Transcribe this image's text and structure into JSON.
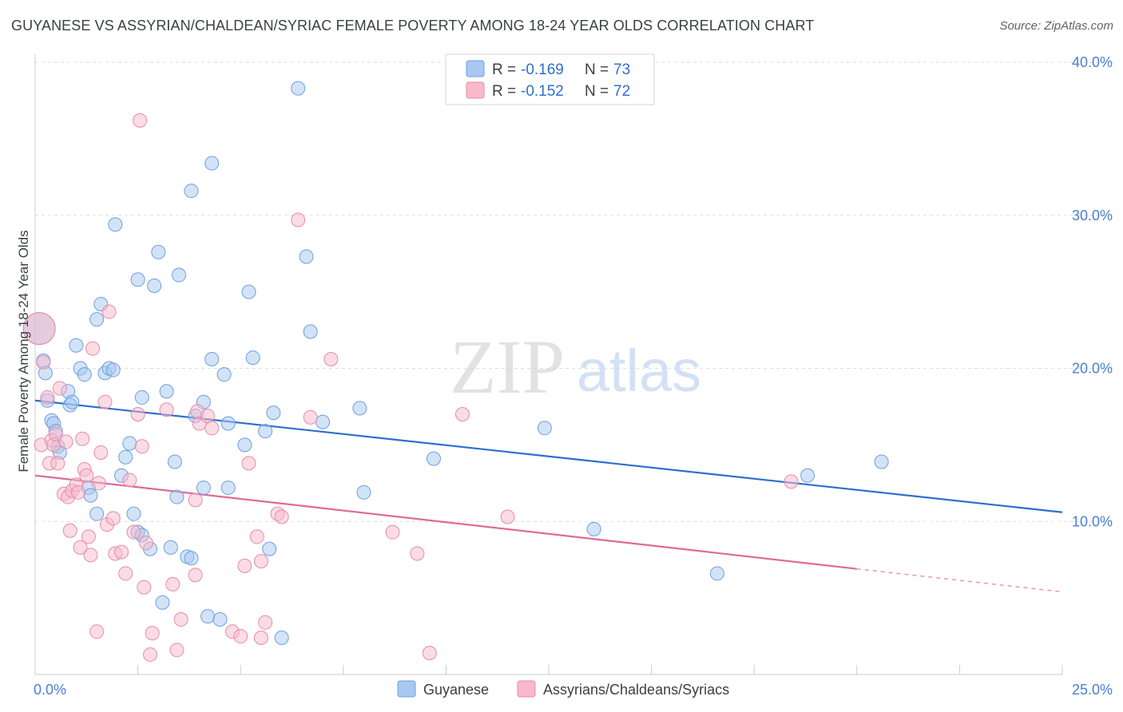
{
  "title": "GUYANESE VS ASSYRIAN/CHALDEAN/SYRIAC FEMALE POVERTY AMONG 18-24 YEAR OLDS CORRELATION CHART",
  "source": "Source: ZipAtlas.com",
  "watermark": {
    "zip": "ZIP",
    "atlas": "atlas"
  },
  "colors": {
    "blue_fill": "#a8c8f0",
    "blue_stroke": "#6c9fe0",
    "blue_line": "#2f6fce",
    "pink_fill": "#f8b9cc",
    "pink_stroke": "#e98aa8",
    "pink_line": "#e06a96",
    "axis_text": "#4a7fd4",
    "grid": "#dddddd"
  },
  "legend_top": {
    "rows": [
      {
        "r_label": "R =",
        "r_value": "-0.169",
        "n_label": "N =",
        "n_value": "73"
      },
      {
        "r_label": "R =",
        "r_value": "-0.152",
        "n_label": "N =",
        "n_value": "72"
      }
    ]
  },
  "chart_data": {
    "type": "scatter",
    "title": "GUYANESE VS ASSYRIAN/CHALDEAN/SYRIAC FEMALE POVERTY AMONG 18-24 YEAR OLDS CORRELATION CHART",
    "xlabel": "",
    "ylabel": "Female Poverty Among 18-24 Year Olds",
    "xlim": [
      0,
      25
    ],
    "ylim": [
      0,
      40
    ],
    "x_tick_labels": [
      "0.0%",
      "25.0%"
    ],
    "y_ticks": [
      10,
      20,
      30,
      40
    ],
    "y_tick_labels": [
      "10.0%",
      "20.0%",
      "30.0%",
      "40.0%"
    ],
    "grid": true,
    "legend_position": "bottom",
    "series": [
      {
        "name": "Guyanese",
        "color": "#a8c8f0",
        "r": -0.169,
        "n": 73,
        "trend": {
          "x": [
            0,
            25
          ],
          "y": [
            17.9,
            10.6
          ]
        },
        "points": [
          [
            0.1,
            22.6
          ],
          [
            0.2,
            20.5
          ],
          [
            0.25,
            19.7
          ],
          [
            0.3,
            17.9
          ],
          [
            0.4,
            16.6
          ],
          [
            0.45,
            16.4
          ],
          [
            0.5,
            15.9
          ],
          [
            0.55,
            14.9
          ],
          [
            0.6,
            14.5
          ],
          [
            0.8,
            18.5
          ],
          [
            0.85,
            17.6
          ],
          [
            0.9,
            17.8
          ],
          [
            1.0,
            21.5
          ],
          [
            1.1,
            20.0
          ],
          [
            1.2,
            19.6
          ],
          [
            1.3,
            12.2
          ],
          [
            1.35,
            11.7
          ],
          [
            1.5,
            10.5
          ],
          [
            1.6,
            24.2
          ],
          [
            1.5,
            23.2
          ],
          [
            1.7,
            19.7
          ],
          [
            1.8,
            20.0
          ],
          [
            1.9,
            19.9
          ],
          [
            1.95,
            29.4
          ],
          [
            2.1,
            13.0
          ],
          [
            2.2,
            14.2
          ],
          [
            2.3,
            15.1
          ],
          [
            2.4,
            10.5
          ],
          [
            2.5,
            9.3
          ],
          [
            2.6,
            9.1
          ],
          [
            2.5,
            25.8
          ],
          [
            2.6,
            18.1
          ],
          [
            2.8,
            8.2
          ],
          [
            2.9,
            25.4
          ],
          [
            3.0,
            27.6
          ],
          [
            3.1,
            4.7
          ],
          [
            3.2,
            18.5
          ],
          [
            3.3,
            8.3
          ],
          [
            3.4,
            13.9
          ],
          [
            3.45,
            11.6
          ],
          [
            3.5,
            26.1
          ],
          [
            3.7,
            7.7
          ],
          [
            3.8,
            7.6
          ],
          [
            3.8,
            31.6
          ],
          [
            3.9,
            16.9
          ],
          [
            4.1,
            17.8
          ],
          [
            4.1,
            12.2
          ],
          [
            4.2,
            3.8
          ],
          [
            4.3,
            33.4
          ],
          [
            4.3,
            20.6
          ],
          [
            4.5,
            3.6
          ],
          [
            4.6,
            19.6
          ],
          [
            4.7,
            16.4
          ],
          [
            4.7,
            12.2
          ],
          [
            5.1,
            15.0
          ],
          [
            5.2,
            25.0
          ],
          [
            5.3,
            20.7
          ],
          [
            5.6,
            15.9
          ],
          [
            5.7,
            8.2
          ],
          [
            5.8,
            17.1
          ],
          [
            6.0,
            2.4
          ],
          [
            6.4,
            38.3
          ],
          [
            6.6,
            27.3
          ],
          [
            6.7,
            22.4
          ],
          [
            7.0,
            16.5
          ],
          [
            7.9,
            17.4
          ],
          [
            8.0,
            11.9
          ],
          [
            9.7,
            14.1
          ],
          [
            12.4,
            16.1
          ],
          [
            13.6,
            9.5
          ],
          [
            16.6,
            6.6
          ],
          [
            18.8,
            13.0
          ],
          [
            20.6,
            13.9
          ]
        ]
      },
      {
        "name": "Assyrians/Chaldeans/Syriacs",
        "color": "#f8b9cc",
        "r": -0.152,
        "n": 72,
        "trend": {
          "x": [
            0,
            20
          ],
          "y": [
            13.0,
            6.9
          ]
        },
        "trend_dashed": {
          "x": [
            20,
            25
          ],
          "y": [
            6.9,
            5.4
          ]
        },
        "points": [
          [
            0.15,
            15.0
          ],
          [
            0.2,
            20.4
          ],
          [
            0.3,
            18.1
          ],
          [
            0.35,
            13.8
          ],
          [
            0.4,
            15.3
          ],
          [
            0.45,
            15.0
          ],
          [
            0.5,
            15.7
          ],
          [
            0.55,
            13.8
          ],
          [
            0.6,
            18.7
          ],
          [
            0.7,
            11.8
          ],
          [
            0.75,
            15.2
          ],
          [
            0.8,
            11.6
          ],
          [
            0.85,
            9.4
          ],
          [
            0.9,
            12.0
          ],
          [
            1.0,
            12.4
          ],
          [
            1.05,
            11.9
          ],
          [
            1.1,
            8.3
          ],
          [
            1.15,
            15.4
          ],
          [
            1.2,
            13.4
          ],
          [
            1.25,
            13.0
          ],
          [
            1.3,
            9.0
          ],
          [
            1.35,
            7.8
          ],
          [
            1.4,
            21.3
          ],
          [
            1.5,
            2.8
          ],
          [
            1.55,
            12.5
          ],
          [
            1.6,
            14.5
          ],
          [
            1.7,
            17.8
          ],
          [
            1.75,
            9.8
          ],
          [
            1.8,
            23.7
          ],
          [
            1.9,
            10.2
          ],
          [
            1.95,
            7.9
          ],
          [
            2.1,
            8.0
          ],
          [
            2.2,
            6.6
          ],
          [
            2.3,
            12.7
          ],
          [
            2.4,
            9.3
          ],
          [
            2.5,
            17.0
          ],
          [
            2.55,
            36.2
          ],
          [
            2.6,
            14.9
          ],
          [
            2.65,
            5.7
          ],
          [
            2.7,
            8.6
          ],
          [
            2.8,
            1.3
          ],
          [
            2.85,
            2.7
          ],
          [
            3.2,
            17.3
          ],
          [
            3.35,
            5.9
          ],
          [
            3.45,
            1.6
          ],
          [
            3.55,
            3.6
          ],
          [
            3.9,
            11.4
          ],
          [
            3.9,
            6.5
          ],
          [
            3.95,
            17.2
          ],
          [
            4.0,
            16.4
          ],
          [
            4.2,
            16.9
          ],
          [
            4.3,
            16.1
          ],
          [
            4.8,
            2.8
          ],
          [
            5.0,
            2.5
          ],
          [
            5.1,
            7.1
          ],
          [
            5.2,
            13.8
          ],
          [
            5.4,
            9.0
          ],
          [
            5.5,
            7.4
          ],
          [
            5.5,
            2.4
          ],
          [
            5.6,
            3.4
          ],
          [
            5.9,
            10.5
          ],
          [
            6.0,
            10.3
          ],
          [
            6.4,
            29.7
          ],
          [
            6.7,
            16.8
          ],
          [
            7.2,
            20.6
          ],
          [
            8.7,
            9.3
          ],
          [
            9.3,
            7.9
          ],
          [
            9.6,
            1.4
          ],
          [
            10.4,
            17.0
          ],
          [
            11.5,
            10.3
          ],
          [
            18.4,
            12.6
          ],
          [
            0.1,
            22.6
          ]
        ]
      }
    ]
  }
}
